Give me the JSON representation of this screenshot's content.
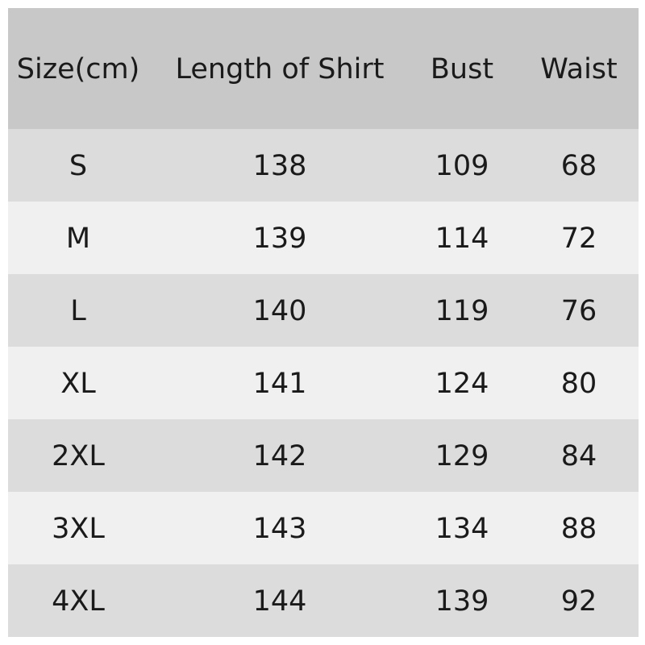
{
  "table": {
    "header": [
      "Size(cm)",
      "Length of Shirt",
      "Bust",
      "Waist"
    ],
    "rows": [
      [
        "S",
        138,
        109,
        68
      ],
      [
        "M",
        139,
        114,
        72
      ],
      [
        "L",
        140,
        119,
        76
      ],
      [
        "XL",
        141,
        124,
        80
      ],
      [
        "2XL",
        142,
        129,
        84
      ],
      [
        "3XL",
        143,
        134,
        88
      ],
      [
        "4XL",
        144,
        139,
        92
      ]
    ]
  }
}
